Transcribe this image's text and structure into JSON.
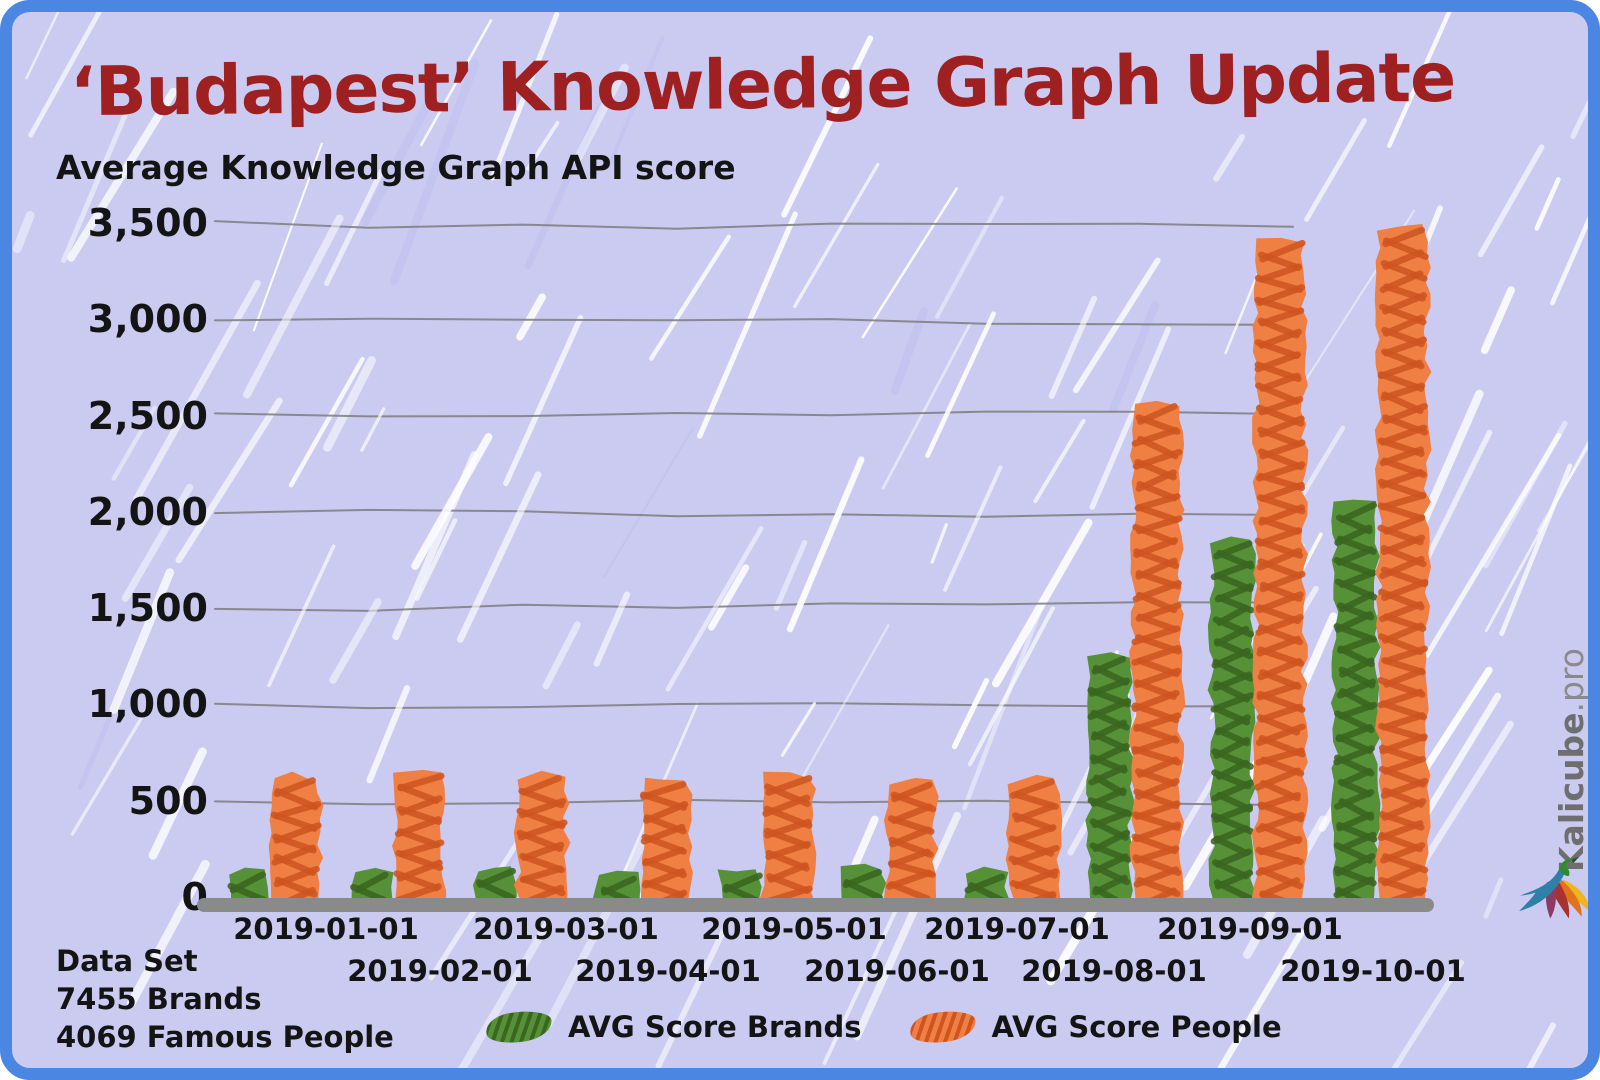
{
  "title": "‘Budapest’ Knowledge Graph Update",
  "subtitle": "Average Knowledge Graph API score",
  "footer": {
    "dataset_label": "Data Set",
    "brands_line": "7455 Brands",
    "people_line": "4069 Famous People"
  },
  "legend": {
    "brands_label": "AVG Score Brands",
    "people_label": "AVG Score People"
  },
  "watermark": {
    "brand": "Kalicube",
    "suffix": ".pro",
    "logo_icon": "bird-logo"
  },
  "colors": {
    "frame_border": "#4a86e2",
    "background": "#cbcbf2",
    "title_text": "#9e2020",
    "body_text": "#141414",
    "grid_line": "#7d7d7d",
    "axis_bar": "#8a8a8a",
    "brands_dark": "#3a6620",
    "brands_light": "#569138",
    "people_dark": "#cf5520",
    "people_light": "#ef7f42",
    "watermark_text": "#6e6e6e"
  },
  "chart_data": {
    "type": "bar",
    "title": "‘Budapest’ Knowledge Graph Update",
    "ylabel": "Average Knowledge Graph API score",
    "categories": [
      "2019-01-01",
      "2019-02-01",
      "2019-03-01",
      "2019-04-01",
      "2019-05-01",
      "2019-06-01",
      "2019-07-01",
      "2019-08-01",
      "2019-09-01",
      "2019-10-01"
    ],
    "series": [
      {
        "name": "AVG Score Brands",
        "color": "#569138",
        "values": [
          130,
          130,
          150,
          120,
          130,
          150,
          130,
          1260,
          1860,
          2050
        ]
      },
      {
        "name": "AVG Score People",
        "color": "#ef7f42",
        "values": [
          620,
          650,
          630,
          610,
          640,
          600,
          610,
          2560,
          3410,
          3480
        ]
      }
    ],
    "yticks": [
      0,
      500,
      1000,
      1500,
      2000,
      2500,
      3000,
      3500
    ],
    "ytick_labels": [
      "0",
      "500",
      "1,000",
      "1,500",
      "2,000",
      "2,500",
      "3,000",
      "3,500"
    ],
    "ylim": [
      0,
      3700
    ],
    "grid": true,
    "legend_position": "bottom",
    "x_label_rows": "staggered"
  }
}
